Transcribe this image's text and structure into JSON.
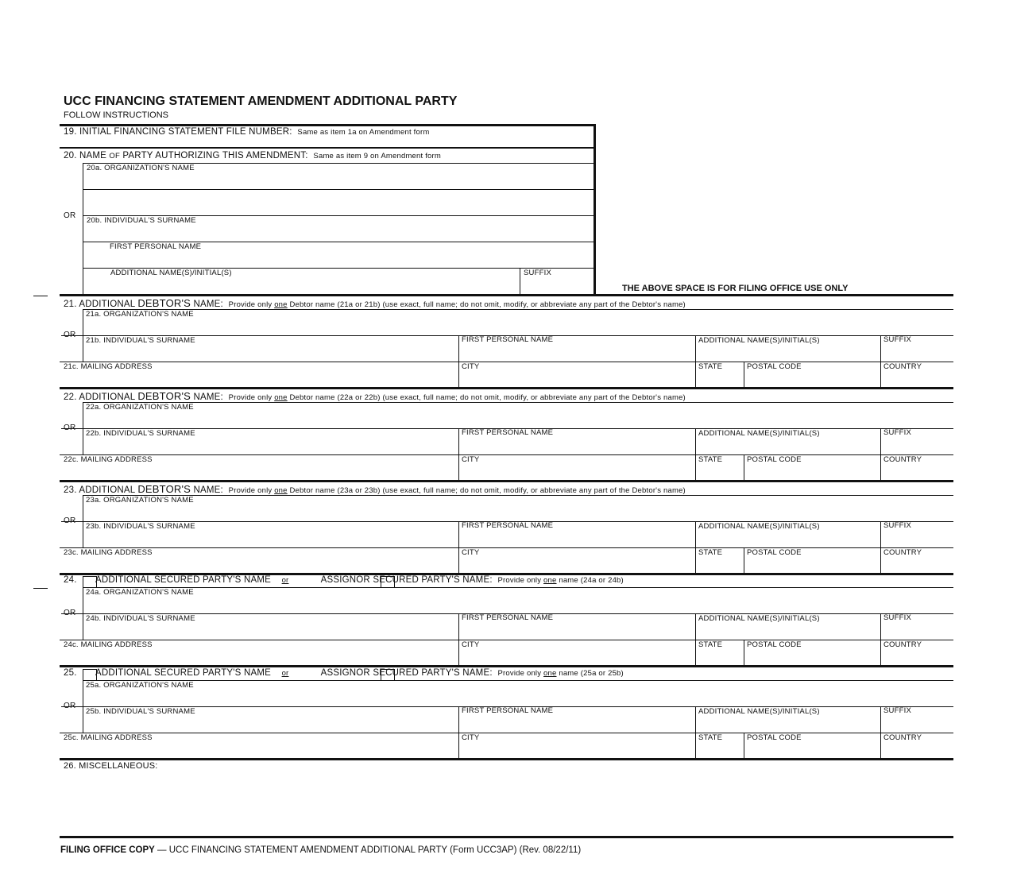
{
  "form": {
    "title": "UCC FINANCING STATEMENT AMENDMENT ADDITIONAL PARTY",
    "follow": "FOLLOW INSTRUCTIONS",
    "item19": {
      "label": "19. INITIAL FINANCING STATEMENT FILE NUMBER:",
      "note": "Same as item 1a on Amendment form"
    },
    "item20": {
      "label_pre": "20. NAME ",
      "label_small": "OF",
      "label_post": " PARTY AUTHORIZING THIS AMENDMENT:",
      "note": "Same as item 9 on Amendment form",
      "org": "20a. ORGANIZATION'S NAME",
      "or": "OR",
      "surname": "20b. INDIVIDUAL'S SURNAME",
      "first": "FIRST PERSONAL NAME",
      "additional": "ADDITIONAL NAME(S)/INITIAL(S)",
      "suffix": "SUFFIX"
    },
    "filing_office_note": "THE ABOVE SPACE IS FOR FILING OFFICE USE ONLY",
    "common": {
      "or": "OR",
      "first": "FIRST PERSONAL NAME",
      "additional": "ADDITIONAL NAME(S)/INITIAL(S)",
      "suffix": "SUFFIX",
      "city": "CITY",
      "state": "STATE",
      "postal": "POSTAL CODE",
      "country": "COUNTRY"
    },
    "sections": [
      {
        "type": "debtor",
        "num": "21.",
        "pre": "ADDITIONAL ",
        "big": "DEBTOR'S",
        "post": " NAME:",
        "note_pre": "Provide only ",
        "note_em": "one",
        "note_post": " Debtor name (21a or 21b) (use exact, full name; do not omit, modify, or abbreviate any part of the Debtor's name)",
        "org": "21a. ORGANIZATION'S NAME",
        "surname": "21b. INDIVIDUAL'S SURNAME",
        "address": "21c.  MAILING ADDRESS"
      },
      {
        "type": "debtor",
        "num": "22.",
        "pre": "ADDITIONAL ",
        "big": "DEBTOR'S",
        "post": " NAME:",
        "note_pre": "Provide only ",
        "note_em": "one",
        "note_post": " Debtor name (22a or 22b) (use exact, full name; do not omit, modify, or abbreviate any part of the Debtor's name)",
        "org": "22a. ORGANIZATION'S NAME",
        "surname": "22b. INDIVIDUAL'S SURNAME",
        "address": "22c.  MAILING ADDRESS"
      },
      {
        "type": "debtor",
        "num": "23.",
        "pre": "ADDITIONAL ",
        "big": "DEBTOR'S",
        "post": " NAME:",
        "note_pre": "Provide only ",
        "note_em": "one",
        "note_post": " Debtor name (23a or 23b) (use exact, full name; do not omit, modify, or abbreviate any part of the Debtor's name)",
        "org": "23a. ORGANIZATION'S NAME",
        "surname": "23b. INDIVIDUAL'S SURNAME",
        "address": "23c.  MAILING ADDRESS"
      },
      {
        "type": "secured",
        "num": "24.",
        "opt1": "ADDITIONAL SECURED PARTY'S NAME",
        "or": "or",
        "opt2": "ASSIGNOR SECURED PARTY'S NAME:",
        "note_pre": "Provide only ",
        "note_em": "one",
        "note_post": " name (24a or 24b)",
        "org": "24a. ORGANIZATION'S NAME",
        "surname": "24b. INDIVIDUAL'S SURNAME",
        "address": "24c.  MAILING ADDRESS"
      },
      {
        "type": "secured",
        "num": "25.",
        "opt1": "ADDITIONAL SECURED PARTY'S NAME",
        "or": "or",
        "opt2": "ASSIGNOR SECURED PARTY'S NAME:",
        "note_pre": "Provide only ",
        "note_em": "one",
        "note_post": " name (25a or 25b)",
        "org": "25a. ORGANIZATION'S NAME",
        "surname": "25b. INDIVIDUAL'S SURNAME",
        "address": "25c.  MAILING ADDRESS"
      }
    ],
    "misc": "26. MISCELLANEOUS:",
    "footer": {
      "bold": "FILING OFFICE COPY",
      "rest": " — UCC FINANCING STATEMENT AMENDMENT ADDITIONAL PARTY (Form UCC3AP) (Rev. 08/22/11)"
    }
  }
}
